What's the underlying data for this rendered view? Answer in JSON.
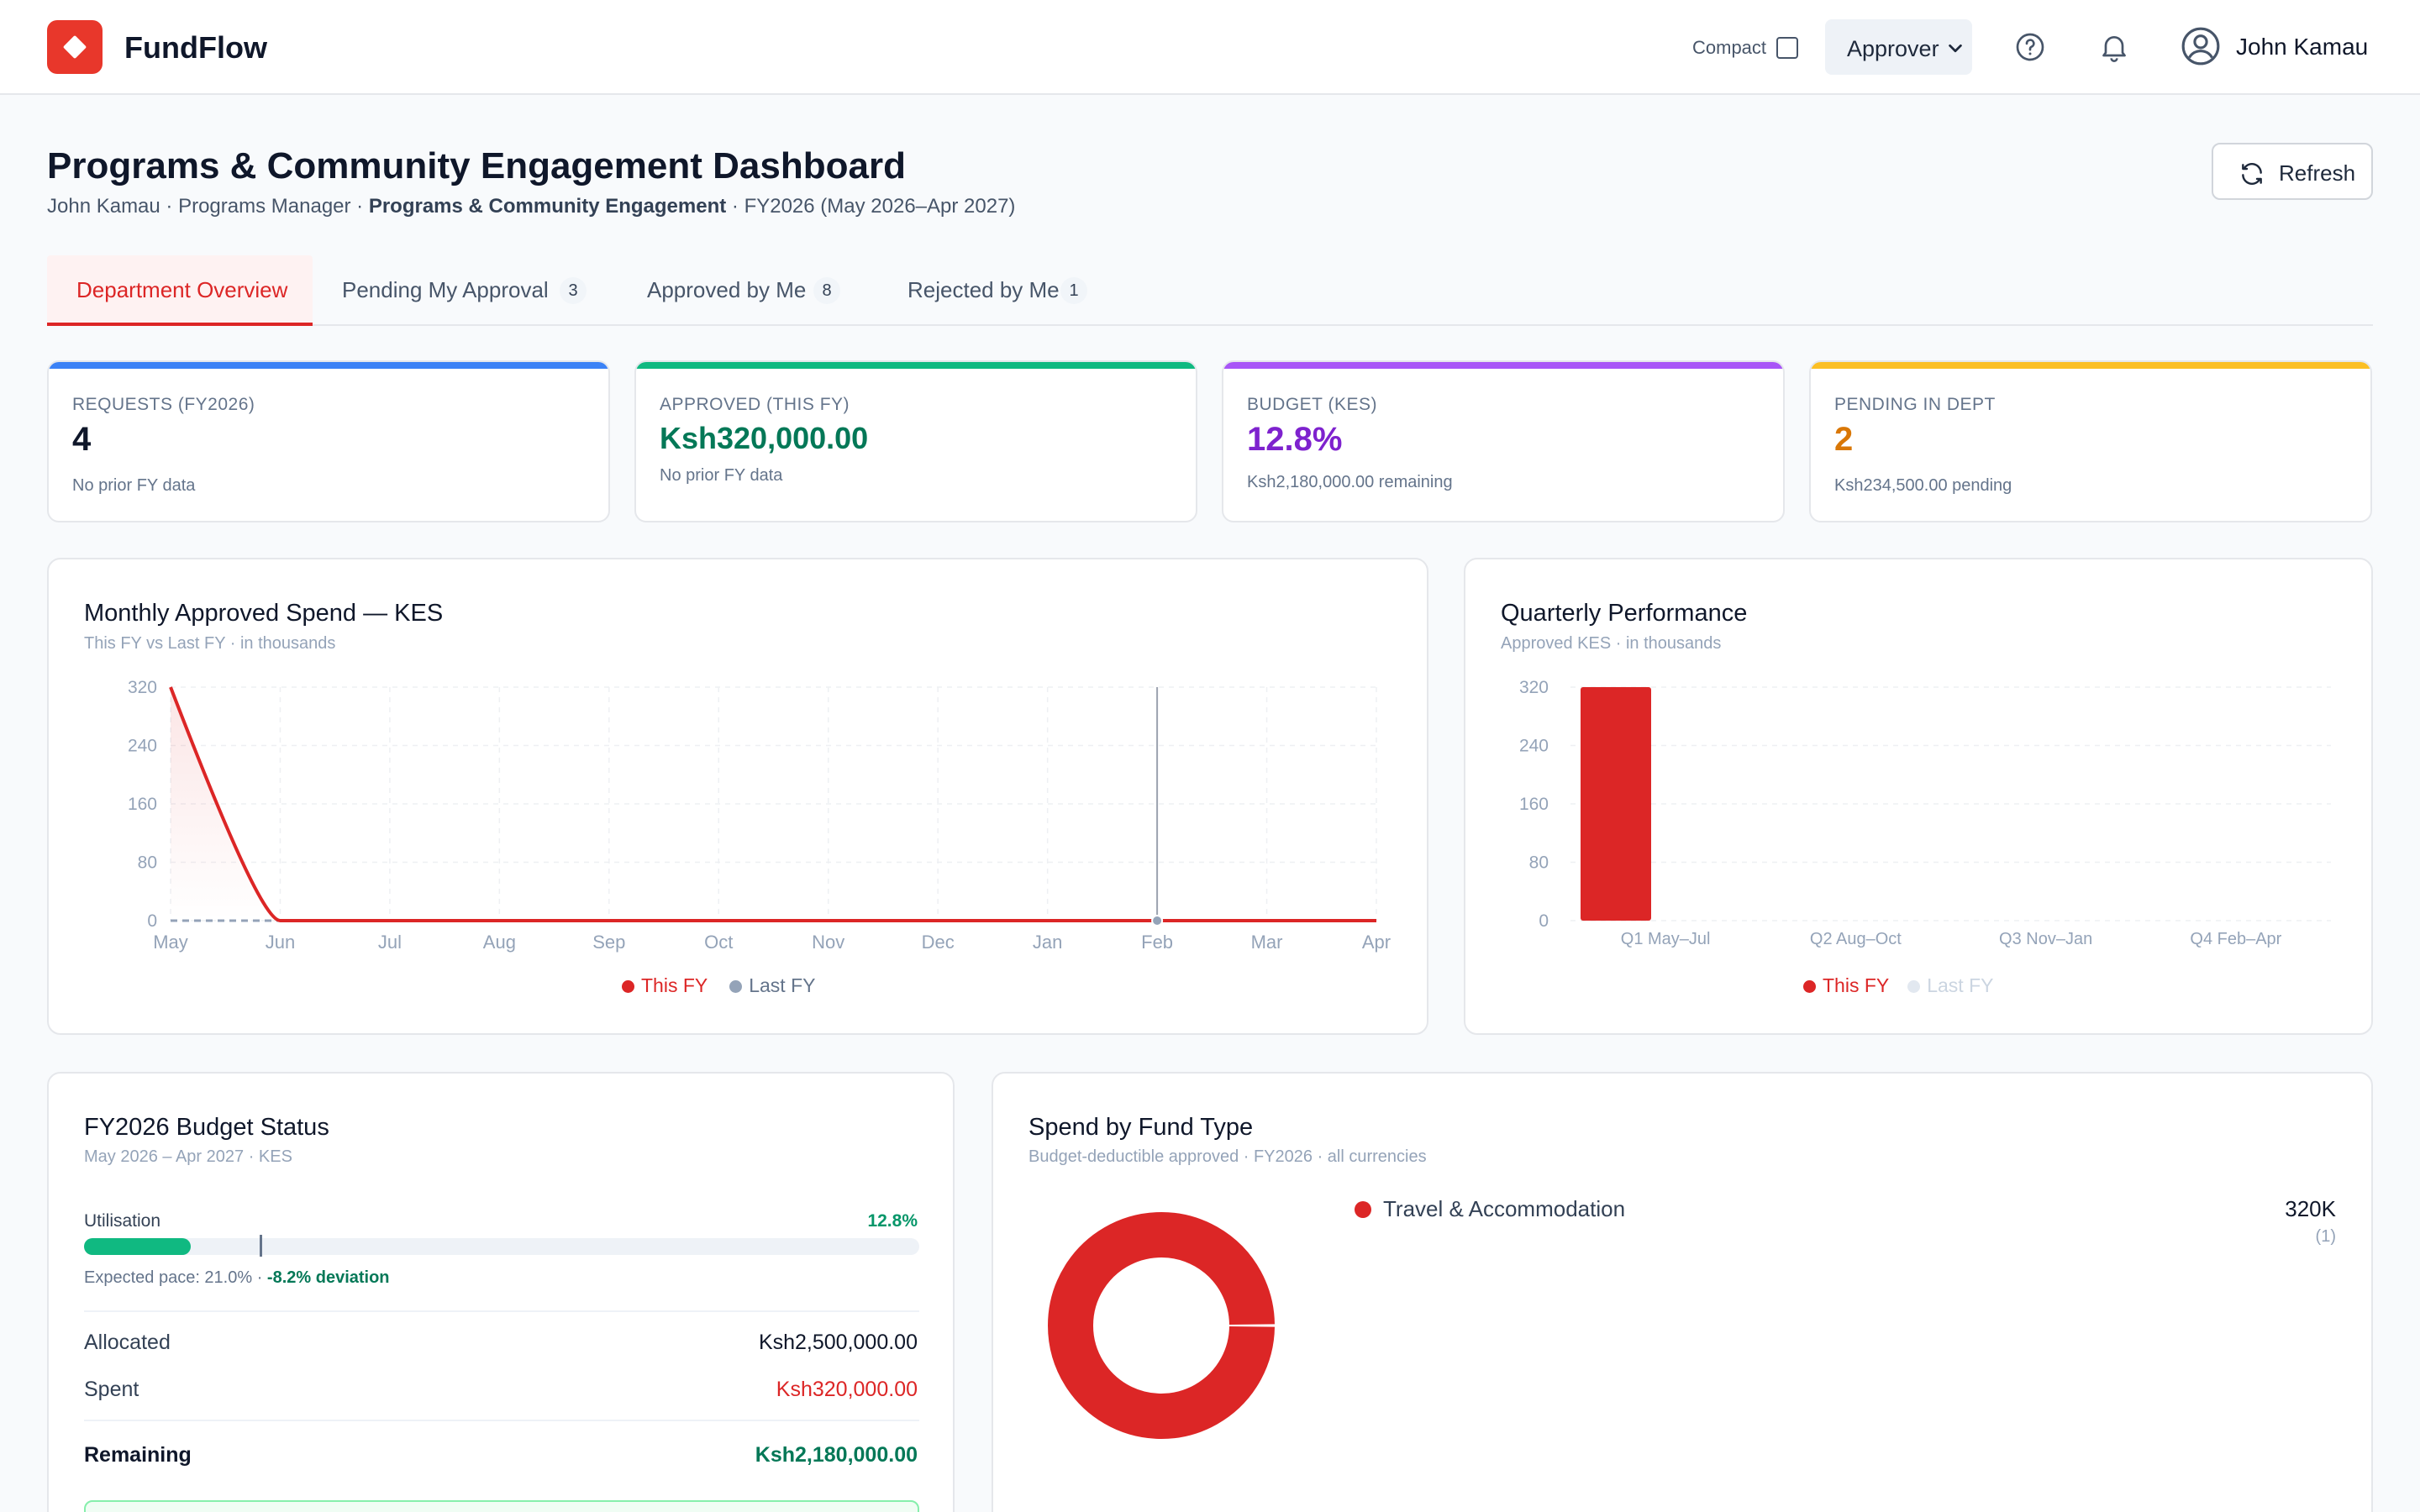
{
  "header": {
    "brand": "FundFlow",
    "compact_label": "Compact",
    "role": "Approver",
    "user_name": "John Kamau"
  },
  "page": {
    "title": "Programs & Community Engagement Dashboard",
    "subtitle_lead": "John Kamau · Programs Manager · ",
    "subtitle_dept": "Programs & Community Engagement",
    "subtitle_tail": " · FY2026 (May 2026–Apr 2027)",
    "refresh_label": "Refresh"
  },
  "tabs": [
    {
      "label": "Department Overview",
      "badge": ""
    },
    {
      "label": "Pending My Approval",
      "badge": "3"
    },
    {
      "label": "Approved by Me",
      "badge": "8"
    },
    {
      "label": "Rejected by Me",
      "badge": "1"
    }
  ],
  "kpis": [
    {
      "label": "REQUESTS (FY2026)",
      "value": "4",
      "sub": "No prior FY data",
      "color": "#3b82f6",
      "value_color": "#0f172a"
    },
    {
      "label": "APPROVED (THIS FY)",
      "value": "Ksh320,000.00",
      "sub": "No prior FY data",
      "color": "#10b981",
      "value_color": "#047857"
    },
    {
      "label": "BUDGET (KES)",
      "value": "12.8%",
      "sub": "Ksh2,180,000.00 remaining",
      "color": "#a855f7",
      "value_color": "#7e22ce"
    },
    {
      "label": "PENDING IN DEPT",
      "value": "2",
      "sub": "Ksh234,500.00 pending",
      "color": "#fbbf24",
      "value_color": "#d97706"
    }
  ],
  "monthly": {
    "title": "Monthly Approved Spend — KES",
    "subtitle": "This FY vs Last FY · in thousands",
    "legend_this": "This FY",
    "legend_last": "Last FY",
    "color_this": "#dc2626",
    "color_last": "#94a3b8"
  },
  "quarterly": {
    "title": "Quarterly Performance",
    "subtitle": "Approved KES · in thousands",
    "legend_this": "This FY",
    "legend_last": "Last FY"
  },
  "chart_data": [
    {
      "type": "line",
      "x": [
        "May",
        "Jun",
        "Jul",
        "Aug",
        "Sep",
        "Oct",
        "Nov",
        "Dec",
        "Jan",
        "Feb",
        "Mar",
        "Apr"
      ],
      "series": [
        {
          "name": "This FY",
          "values": [
            320,
            0,
            0,
            0,
            0,
            0,
            0,
            0,
            0,
            0,
            0,
            0
          ]
        },
        {
          "name": "Last FY",
          "values": [
            0,
            0,
            0,
            0,
            0,
            0,
            0,
            0,
            0,
            0,
            0,
            0
          ]
        }
      ],
      "yticks": [
        0,
        80,
        160,
        240,
        320
      ],
      "ylim": [
        0,
        320
      ],
      "grid": true,
      "legend": "bottom-center"
    },
    {
      "type": "bar",
      "categories": [
        "Q1 May–Jul",
        "Q2 Aug–Oct",
        "Q3 Nov–Jan",
        "Q4 Feb–Apr"
      ],
      "series": [
        {
          "name": "This FY",
          "values": [
            320,
            0,
            0,
            0
          ]
        },
        {
          "name": "Last FY",
          "values": [
            0,
            0,
            0,
            0
          ]
        }
      ],
      "yticks": [
        0,
        80,
        160,
        240,
        320
      ],
      "ylim": [
        0,
        320
      ],
      "grid": true,
      "legend": "bottom-center"
    },
    {
      "type": "pie",
      "categories": [
        "Travel & Accommodation"
      ],
      "values": [
        320
      ],
      "colors": [
        "#dc2626"
      ]
    }
  ],
  "budget": {
    "title": "FY2026 Budget Status",
    "subtitle": "May 2026 – Apr 2027 · KES",
    "utilisation_label": "Utilisation",
    "utilisation_value": "12.8%",
    "utilisation_fraction": 0.128,
    "expected_fraction": 0.21,
    "pace_text": "Expected pace: 21.0% · ",
    "deviation_text": "-8.2% deviation",
    "allocated_label": "Allocated",
    "allocated_value": "Ksh2,500,000.00",
    "spent_label": "Spent",
    "spent_value": "Ksh320,000.00",
    "remaining_label": "Remaining",
    "remaining_value": "Ksh2,180,000.00"
  },
  "fund_type": {
    "title": "Spend by Fund Type",
    "subtitle": "Budget-deductible approved · FY2026 · all currencies",
    "items": [
      {
        "label": "Travel & Accommodation",
        "value": "320K",
        "count": "(1)"
      }
    ]
  }
}
